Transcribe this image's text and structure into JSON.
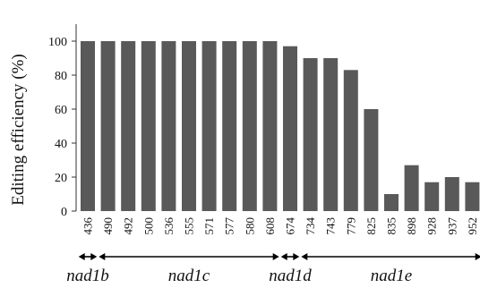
{
  "chart_data": {
    "type": "bar",
    "ylabel": "Editing efficiency (%)",
    "xlabel": "",
    "title": "",
    "ylim": [
      0,
      110
    ],
    "yticks": [
      0,
      20,
      40,
      60,
      80,
      100
    ],
    "grid": false,
    "bar_color": "#595959",
    "categories": [
      "436",
      "490",
      "492",
      "500",
      "536",
      "555",
      "571",
      "577",
      "580",
      "608",
      "674",
      "734",
      "743",
      "779",
      "825",
      "835",
      "898",
      "928",
      "937",
      "952"
    ],
    "values": [
      100,
      100,
      100,
      100,
      100,
      100,
      100,
      100,
      100,
      100,
      97,
      90,
      90,
      83,
      60,
      10,
      27,
      17,
      20,
      17
    ],
    "regions": [
      {
        "name": "nad1b",
        "from": 0,
        "to": 0
      },
      {
        "name": "nad1c",
        "from": 1,
        "to": 9
      },
      {
        "name": "nad1d",
        "from": 10,
        "to": 10
      },
      {
        "name": "nad1e",
        "from": 11,
        "to": 19
      }
    ]
  }
}
